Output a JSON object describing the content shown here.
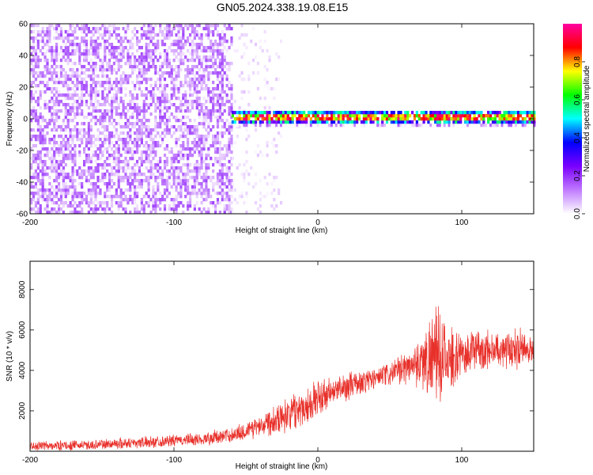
{
  "title": "GN05.2024.338.19.08.E15",
  "chart_data": [
    {
      "type": "heatmap",
      "title": "GN05.2024.338.19.08.E15",
      "xlabel": "Height of straight line (km)",
      "ylabel": "Frequency (Hz)",
      "xlim": [
        -200,
        150
      ],
      "ylim": [
        -60,
        60
      ],
      "xticks": [
        -200,
        -100,
        0,
        100
      ],
      "yticks": [
        60,
        40,
        20,
        0,
        -20,
        -40,
        -60
      ],
      "colorbar": {
        "label": "Normalized spectral amplitude",
        "range": [
          0,
          1
        ],
        "ticks": [
          "0.0",
          "0.2",
          "0.4",
          "0.6",
          "0.8"
        ],
        "colormap": [
          "#ffffff",
          "#c07bff",
          "#7a00ff",
          "#0000ff",
          "#00ffff",
          "#00ff00",
          "#ffff00",
          "#ff0000",
          "#ff00a0"
        ]
      },
      "description_regions": [
        {
          "x_range": [
            -200,
            -60
          ],
          "freq_range": [
            -60,
            60
          ],
          "amplitude": 0.1
        },
        {
          "x_range": [
            -60,
            -25
          ],
          "freq_range": [
            -60,
            60
          ],
          "amplitude": 0.03
        },
        {
          "x_range": [
            -60,
            150
          ],
          "freq_range": [
            -5,
            5
          ],
          "amplitude": 1.0
        }
      ]
    },
    {
      "type": "line",
      "xlabel": "Height of straight line (km)",
      "ylabel": "SNR (10 * v/v)",
      "xlim": [
        -200,
        150
      ],
      "ylim": [
        0,
        9400
      ],
      "xticks": [
        -200,
        -100,
        0,
        100
      ],
      "yticks": [
        2000,
        4000,
        6000,
        8000
      ],
      "color": "#e8302a",
      "envelope": {
        "x": [
          -200,
          -180,
          -160,
          -140,
          -120,
          -100,
          -80,
          -60,
          -50,
          -40,
          -30,
          -20,
          -10,
          0,
          10,
          20,
          30,
          40,
          50,
          60,
          65,
          70,
          75,
          80,
          85,
          90,
          95,
          100,
          110,
          120,
          130,
          140,
          150
        ],
        "mean": [
          250,
          280,
          300,
          380,
          450,
          520,
          600,
          800,
          1000,
          1300,
          1600,
          1900,
          2200,
          2600,
          2900,
          3200,
          3400,
          3600,
          3800,
          4100,
          4300,
          4400,
          4500,
          4700,
          4700,
          4500,
          4600,
          4800,
          5000,
          5000,
          5100,
          5100,
          5000
        ],
        "spread": [
          250,
          250,
          250,
          300,
          300,
          300,
          350,
          400,
          500,
          600,
          800,
          900,
          1000,
          1000,
          800,
          700,
          700,
          600,
          600,
          800,
          900,
          1300,
          1700,
          2300,
          2500,
          1800,
          1300,
          1100,
          1100,
          1000,
          1000,
          1000,
          900
        ]
      }
    }
  ]
}
